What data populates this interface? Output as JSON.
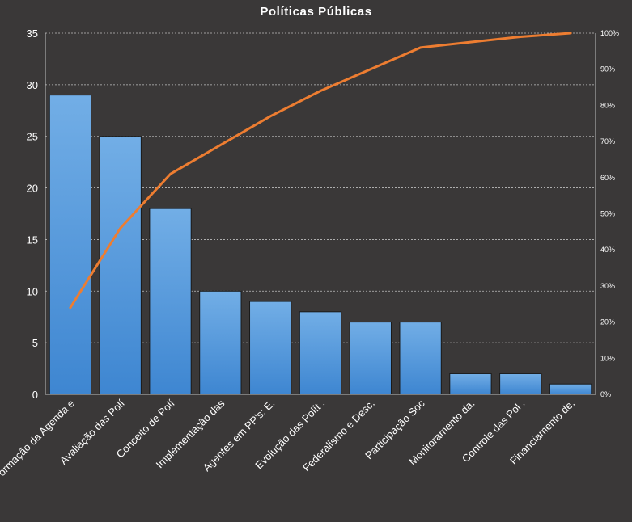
{
  "chart_data": {
    "type": "bar",
    "title": "Políticas  Públicas",
    "categories": [
      "Formação da Agenda e",
      "Avaliação das Polí",
      "Conceito de Polí",
      "Implementação das",
      "Agentes em PP's: E.",
      "Evolução das Polít .",
      "Federalismo e Desc.",
      "Participação Soc",
      "Monitoramento da.",
      "Controle das Pol .",
      "Financiamento de."
    ],
    "series": [
      {
        "type": "bar",
        "values": [
          29,
          25,
          18,
          10,
          9,
          8,
          7,
          7,
          2,
          2,
          1
        ]
      },
      {
        "type": "line",
        "axis": "secondary",
        "values": [
          0.24,
          0.46,
          0.61,
          0.69,
          0.77,
          0.84,
          0.9,
          0.96,
          0.975,
          0.99,
          1.0
        ]
      }
    ],
    "ylim": [
      0,
      35
    ],
    "yticks": [
      0,
      5,
      10,
      15,
      20,
      25,
      30,
      35
    ],
    "y2lim": [
      0,
      1
    ],
    "y2ticks": [
      "0%",
      "10%",
      "20%",
      "30%",
      "40%",
      "50%",
      "60%",
      "70%",
      "80%",
      "90%",
      "100%"
    ],
    "grid": true,
    "legend": "none",
    "colors": {
      "background": "#3a3838",
      "bar": "#4a90d9",
      "bar_top": "#6aa8e8",
      "line": "#ed7d31",
      "grid": "#bfbfbf",
      "text": "#ffffff"
    }
  }
}
